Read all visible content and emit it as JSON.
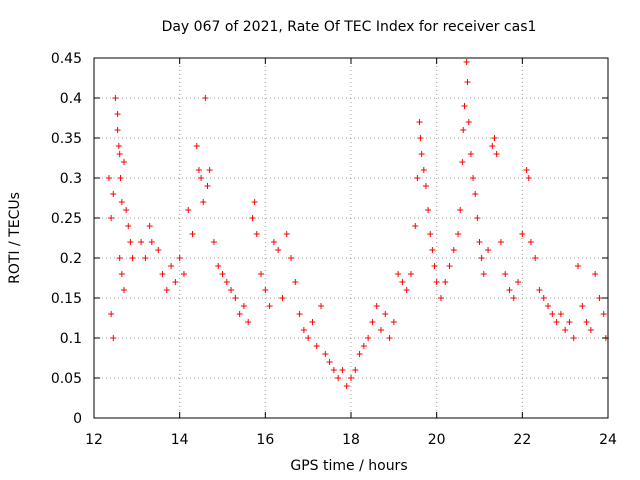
{
  "chart_data": {
    "type": "scatter",
    "title": "Day 067 of 2021, Rate Of TEC Index for receiver cas1",
    "xlabel": "GPS time / hours",
    "ylabel": "ROTI / TECUs",
    "xlim": [
      12,
      24
    ],
    "ylim": [
      0,
      0.45
    ],
    "x_ticks": [
      "12",
      "14",
      "16",
      "18",
      "20",
      "22",
      "24"
    ],
    "x_tick_values": [
      12,
      14,
      16,
      18,
      20,
      22,
      24
    ],
    "y_ticks": [
      "0",
      "0.05",
      "0.1",
      "0.15",
      "0.2",
      "0.25",
      "0.3",
      "0.35",
      "0.4",
      "0.45"
    ],
    "y_tick_values": [
      0,
      0.05,
      0.1,
      0.15,
      0.2,
      0.25,
      0.3,
      0.35,
      0.4,
      0.45
    ],
    "grid": true,
    "marker": "+",
    "color": "#ff0000",
    "series": [
      {
        "name": "cas1",
        "points": [
          [
            12.35,
            0.3
          ],
          [
            12.4,
            0.25
          ],
          [
            12.45,
            0.28
          ],
          [
            12.5,
            0.4
          ],
          [
            12.55,
            0.38
          ],
          [
            12.55,
            0.36
          ],
          [
            12.58,
            0.34
          ],
          [
            12.6,
            0.33
          ],
          [
            12.62,
            0.3
          ],
          [
            12.65,
            0.27
          ],
          [
            12.7,
            0.32
          ],
          [
            12.75,
            0.26
          ],
          [
            12.8,
            0.24
          ],
          [
            12.85,
            0.22
          ],
          [
            12.9,
            0.2
          ],
          [
            12.6,
            0.2
          ],
          [
            12.65,
            0.18
          ],
          [
            12.7,
            0.16
          ],
          [
            12.4,
            0.13
          ],
          [
            12.45,
            0.1
          ],
          [
            13.1,
            0.22
          ],
          [
            13.2,
            0.2
          ],
          [
            13.3,
            0.24
          ],
          [
            13.35,
            0.22
          ],
          [
            13.5,
            0.21
          ],
          [
            13.6,
            0.18
          ],
          [
            13.7,
            0.16
          ],
          [
            13.8,
            0.19
          ],
          [
            13.9,
            0.17
          ],
          [
            14.0,
            0.2
          ],
          [
            14.1,
            0.18
          ],
          [
            14.2,
            0.26
          ],
          [
            14.3,
            0.23
          ],
          [
            14.4,
            0.34
          ],
          [
            14.45,
            0.31
          ],
          [
            14.5,
            0.3
          ],
          [
            14.55,
            0.27
          ],
          [
            14.6,
            0.4
          ],
          [
            14.65,
            0.29
          ],
          [
            14.7,
            0.31
          ],
          [
            14.8,
            0.22
          ],
          [
            14.9,
            0.19
          ],
          [
            15.0,
            0.18
          ],
          [
            15.1,
            0.17
          ],
          [
            15.2,
            0.16
          ],
          [
            15.3,
            0.15
          ],
          [
            15.4,
            0.13
          ],
          [
            15.5,
            0.14
          ],
          [
            15.6,
            0.12
          ],
          [
            15.7,
            0.25
          ],
          [
            15.75,
            0.27
          ],
          [
            15.8,
            0.23
          ],
          [
            15.9,
            0.18
          ],
          [
            16.0,
            0.16
          ],
          [
            16.1,
            0.14
          ],
          [
            16.2,
            0.22
          ],
          [
            16.3,
            0.21
          ],
          [
            16.4,
            0.15
          ],
          [
            16.5,
            0.23
          ],
          [
            16.6,
            0.2
          ],
          [
            16.7,
            0.17
          ],
          [
            16.8,
            0.13
          ],
          [
            16.9,
            0.11
          ],
          [
            17.0,
            0.1
          ],
          [
            17.1,
            0.12
          ],
          [
            17.2,
            0.09
          ],
          [
            17.3,
            0.14
          ],
          [
            17.4,
            0.08
          ],
          [
            17.5,
            0.07
          ],
          [
            17.6,
            0.06
          ],
          [
            17.7,
            0.05
          ],
          [
            17.8,
            0.06
          ],
          [
            17.9,
            0.04
          ],
          [
            18.0,
            0.05
          ],
          [
            18.1,
            0.06
          ],
          [
            18.2,
            0.08
          ],
          [
            18.3,
            0.09
          ],
          [
            18.4,
            0.1
          ],
          [
            18.5,
            0.12
          ],
          [
            18.6,
            0.14
          ],
          [
            18.7,
            0.11
          ],
          [
            18.8,
            0.13
          ],
          [
            18.9,
            0.1
          ],
          [
            19.0,
            0.12
          ],
          [
            19.1,
            0.18
          ],
          [
            19.2,
            0.17
          ],
          [
            19.3,
            0.16
          ],
          [
            19.4,
            0.18
          ],
          [
            19.5,
            0.24
          ],
          [
            19.55,
            0.3
          ],
          [
            19.6,
            0.37
          ],
          [
            19.62,
            0.35
          ],
          [
            19.65,
            0.33
          ],
          [
            19.7,
            0.31
          ],
          [
            19.75,
            0.29
          ],
          [
            19.8,
            0.26
          ],
          [
            19.85,
            0.23
          ],
          [
            19.9,
            0.21
          ],
          [
            19.95,
            0.19
          ],
          [
            20.0,
            0.17
          ],
          [
            20.1,
            0.15
          ],
          [
            20.2,
            0.17
          ],
          [
            20.3,
            0.19
          ],
          [
            20.4,
            0.21
          ],
          [
            20.5,
            0.23
          ],
          [
            20.55,
            0.26
          ],
          [
            20.6,
            0.32
          ],
          [
            20.62,
            0.36
          ],
          [
            20.65,
            0.39
          ],
          [
            20.7,
            0.445
          ],
          [
            20.72,
            0.42
          ],
          [
            20.75,
            0.37
          ],
          [
            20.8,
            0.33
          ],
          [
            20.85,
            0.3
          ],
          [
            20.9,
            0.28
          ],
          [
            20.95,
            0.25
          ],
          [
            21.0,
            0.22
          ],
          [
            21.05,
            0.2
          ],
          [
            21.1,
            0.18
          ],
          [
            21.2,
            0.21
          ],
          [
            21.3,
            0.34
          ],
          [
            21.35,
            0.35
          ],
          [
            21.4,
            0.33
          ],
          [
            21.5,
            0.22
          ],
          [
            21.6,
            0.18
          ],
          [
            21.7,
            0.16
          ],
          [
            21.8,
            0.15
          ],
          [
            21.9,
            0.17
          ],
          [
            22.0,
            0.23
          ],
          [
            22.1,
            0.31
          ],
          [
            22.15,
            0.3
          ],
          [
            22.2,
            0.22
          ],
          [
            22.3,
            0.2
          ],
          [
            22.4,
            0.16
          ],
          [
            22.5,
            0.15
          ],
          [
            22.6,
            0.14
          ],
          [
            22.7,
            0.13
          ],
          [
            22.8,
            0.12
          ],
          [
            22.9,
            0.13
          ],
          [
            23.0,
            0.11
          ],
          [
            23.1,
            0.12
          ],
          [
            23.2,
            0.1
          ],
          [
            23.3,
            0.19
          ],
          [
            23.4,
            0.14
          ],
          [
            23.5,
            0.12
          ],
          [
            23.6,
            0.11
          ],
          [
            23.7,
            0.18
          ],
          [
            23.8,
            0.15
          ],
          [
            23.9,
            0.13
          ],
          [
            23.95,
            0.1
          ]
        ]
      }
    ]
  }
}
